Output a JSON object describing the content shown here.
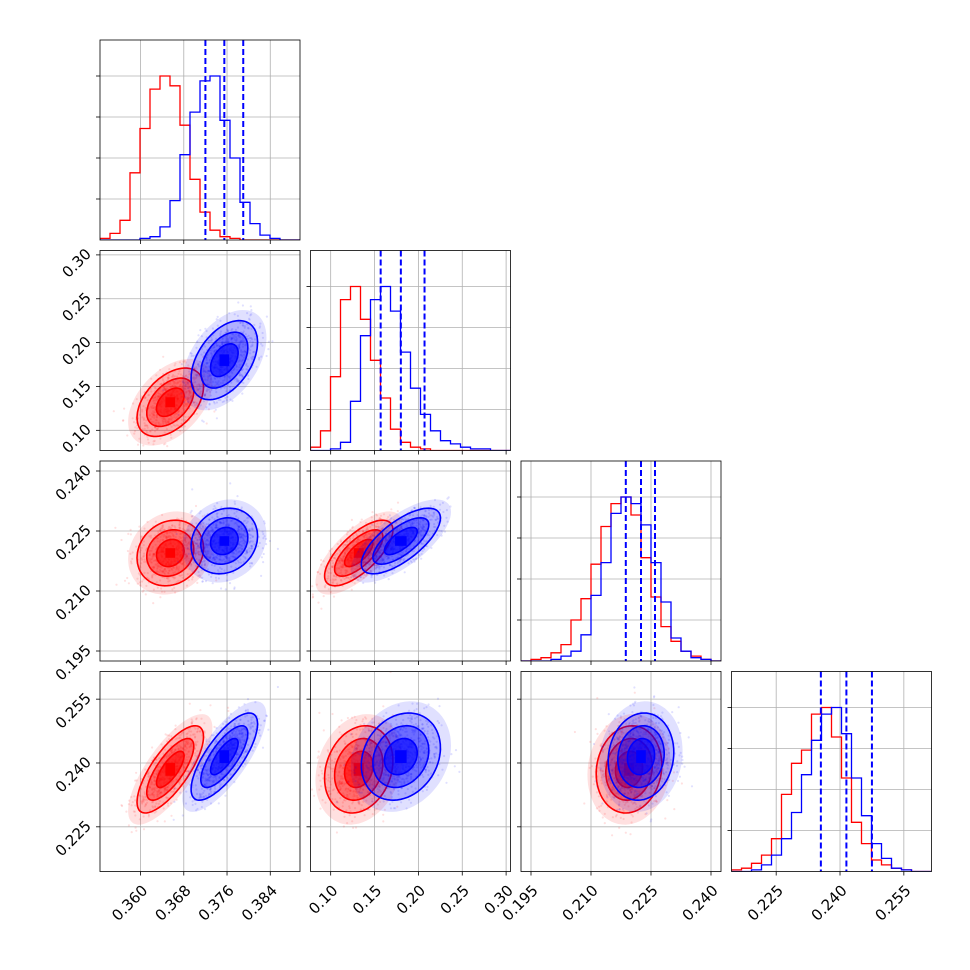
{
  "chart_data": {
    "type": "corner",
    "params": [
      {
        "ticks": [
          "0.360",
          "0.368",
          "0.376",
          "0.384"
        ],
        "tick_values": [
          0.36,
          0.368,
          0.376,
          0.384
        ],
        "range": [
          0.3525,
          0.3895
        ]
      },
      {
        "ticks": [
          "0.10",
          "0.15",
          "0.20",
          "0.25",
          "0.30"
        ],
        "tick_values": [
          0.1,
          0.15,
          0.2,
          0.25,
          0.3
        ],
        "range": [
          0.077,
          0.305
        ]
      },
      {
        "ticks": [
          "0.195",
          "0.210",
          "0.225",
          "0.240"
        ],
        "tick_values": [
          0.195,
          0.21,
          0.225,
          0.24
        ],
        "range": [
          0.1925,
          0.2425
        ]
      },
      {
        "ticks": [
          "0.225",
          "0.240",
          "0.255"
        ],
        "tick_values": [
          0.225,
          0.24,
          0.255
        ],
        "range": [
          0.2145,
          0.2615
        ]
      }
    ],
    "series": [
      {
        "color": "#ff0000",
        "means": [
          0.3655,
          0.132,
          0.2195,
          0.2385
        ],
        "sds": [
          0.003,
          0.019,
          0.004,
          0.005
        ],
        "correlations": [
          [
            0,
            1,
            0.45
          ],
          [
            0,
            2,
            0.15
          ],
          [
            0,
            3,
            0.75
          ],
          [
            1,
            2,
            0.7
          ],
          [
            1,
            3,
            0.2
          ],
          [
            2,
            3,
            0.1
          ]
        ],
        "hist": [
          [
            0.01,
            0.04,
            0.12,
            0.41,
            0.68,
            0.92,
            1.0,
            0.94,
            0.7,
            0.37,
            0.17,
            0.06,
            0.02,
            0.01,
            0.0,
            0.0,
            0.0,
            0.0,
            0.0,
            0.0
          ],
          [
            0.02,
            0.12,
            0.45,
            0.92,
            1.0,
            0.8,
            0.55,
            0.32,
            0.13,
            0.05,
            0.02,
            0.01,
            0.0,
            0.0,
            0.0,
            0.0,
            0.0,
            0.0,
            0.0,
            0.0
          ],
          [
            0.0,
            0.01,
            0.02,
            0.05,
            0.1,
            0.25,
            0.38,
            0.59,
            0.82,
            0.96,
            1.0,
            0.89,
            0.63,
            0.39,
            0.21,
            0.12,
            0.06,
            0.03,
            0.01,
            0.0
          ],
          [
            0.01,
            0.02,
            0.05,
            0.1,
            0.2,
            0.47,
            0.66,
            0.74,
            0.96,
            1.0,
            0.82,
            0.57,
            0.3,
            0.17,
            0.07,
            0.04,
            0.02,
            0.01,
            0.0,
            0.0
          ]
        ]
      },
      {
        "color": "#0000ff",
        "means": [
          0.3755,
          0.18,
          0.2225,
          0.2415
        ],
        "sds": [
          0.003,
          0.022,
          0.004,
          0.005
        ],
        "correlations": [
          [
            0,
            1,
            0.45
          ],
          [
            0,
            2,
            0.15
          ],
          [
            0,
            3,
            0.75
          ],
          [
            1,
            2,
            0.7
          ],
          [
            1,
            3,
            0.2
          ],
          [
            2,
            3,
            0.1
          ]
        ],
        "hist": [
          [
            0.0,
            0.0,
            0.0,
            0.0,
            0.01,
            0.02,
            0.08,
            0.24,
            0.52,
            0.78,
            0.97,
            1.0,
            0.73,
            0.5,
            0.23,
            0.1,
            0.03,
            0.01,
            0.0,
            0.0
          ],
          [
            0.0,
            0.0,
            0.01,
            0.05,
            0.3,
            0.7,
            0.92,
            1.0,
            0.85,
            0.6,
            0.38,
            0.22,
            0.12,
            0.06,
            0.04,
            0.02,
            0.01,
            0.01,
            0.0,
            0.0
          ],
          [
            0.0,
            0.0,
            0.0,
            0.01,
            0.03,
            0.06,
            0.16,
            0.4,
            0.6,
            0.9,
            1.0,
            0.96,
            0.83,
            0.6,
            0.36,
            0.14,
            0.06,
            0.02,
            0.01,
            0.0
          ],
          [
            0.0,
            0.0,
            0.01,
            0.04,
            0.1,
            0.2,
            0.36,
            0.59,
            0.8,
            0.96,
            1.0,
            0.84,
            0.57,
            0.34,
            0.17,
            0.08,
            0.02,
            0.01,
            0.0,
            0.0
          ]
        ]
      }
    ],
    "quantile_lines": {
      "color": "#0000ff",
      "style": "dashed",
      "values": [
        [
          0.372,
          0.3755,
          0.379
        ],
        [
          0.157,
          0.18,
          0.207
        ],
        [
          0.2187,
          0.2225,
          0.226
        ],
        [
          0.2355,
          0.2415,
          0.2475
        ]
      ]
    },
    "grid": true
  }
}
